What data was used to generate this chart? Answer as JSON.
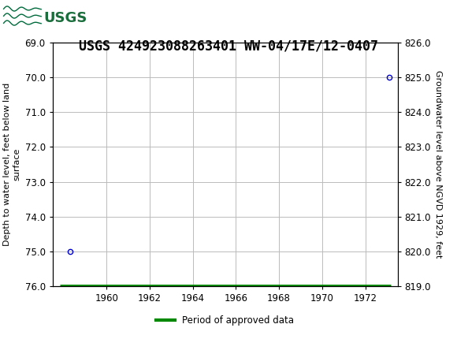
{
  "title": "USGS 424923088263401 WW-04/17E/12-0407",
  "header_bg_color": "#1a6e3c",
  "header_text_color": "#ffffff",
  "left_ylabel": "Depth to water level, feet below land\nsurface",
  "right_ylabel": "Groundwater level above NGVD 1929, feet",
  "ylim_left": [
    76.0,
    69.0
  ],
  "ylim_right": [
    819.0,
    826.0
  ],
  "yticks_left": [
    69.0,
    70.0,
    71.0,
    72.0,
    73.0,
    74.0,
    75.0,
    76.0
  ],
  "yticks_right": [
    819.0,
    820.0,
    821.0,
    822.0,
    823.0,
    824.0,
    825.0,
    826.0
  ],
  "xlim": [
    1957.5,
    1973.5
  ],
  "xticks": [
    1960,
    1962,
    1964,
    1966,
    1968,
    1970,
    1972
  ],
  "xtick_labels": [
    "1960",
    "1962",
    "1964",
    "1966",
    "1968",
    "1970",
    "1972"
  ],
  "data_points_x": [
    1958.3,
    1973.1
  ],
  "data_points_y": [
    75.0,
    70.0
  ],
  "period_bar_x_start": 1957.85,
  "period_bar_x_end": 1973.2,
  "period_bar_y": 76.0,
  "point_color": "#0000cc",
  "period_color": "#008800",
  "grid_color": "#bbbbbb",
  "bg_color": "#ffffff",
  "legend_label": "Period of approved data",
  "title_fontsize": 12,
  "axis_label_fontsize": 8,
  "tick_fontsize": 8.5
}
